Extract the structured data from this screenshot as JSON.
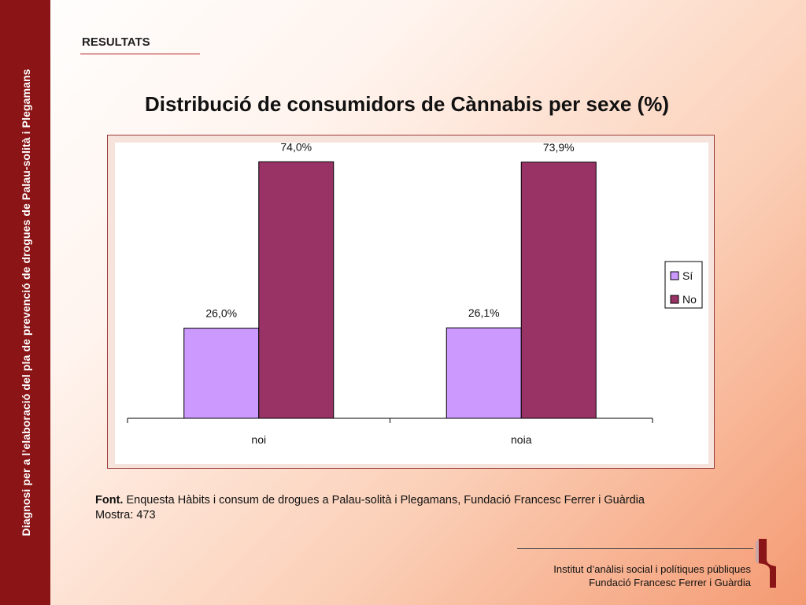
{
  "sidebar": {
    "text": "Diagnosi per a l’elaboració del pla de prevenció de drogues de Palau-solità i Plegamans"
  },
  "section": {
    "title": "RESULTATS"
  },
  "colors": {
    "si": "#cc99ff",
    "no": "#993366",
    "sidebar": "#8a1416",
    "frame_border": "#9b3a3a"
  },
  "chart_data": {
    "type": "bar",
    "title": "Distribució de consumidors de Cànnabis per sexe (%)",
    "categories": [
      "noi",
      "noia"
    ],
    "series": [
      {
        "name": "Sí",
        "values": [
          26.0,
          26.1
        ],
        "labels": [
          "26,0%",
          "26,1%"
        ]
      },
      {
        "name": "No",
        "values": [
          74.0,
          73.9
        ],
        "labels": [
          "74,0%",
          "73,9%"
        ]
      }
    ],
    "ylim": [
      0,
      80
    ],
    "grid": false,
    "legend": "right"
  },
  "source": {
    "font_label": "Font.",
    "font_text": "Enquesta Hàbits i consum de drogues a Palau-solità i Plegamans, Fundació Francesc Ferrer i Guàrdia",
    "sample": "Mostra: 473"
  },
  "footer": {
    "line1": "Institut d’anàlisi social i polítiques públiques",
    "line2": "Fundació Francesc Ferrer i Guàrdia",
    "logo_icon": "institute-logo-icon"
  }
}
